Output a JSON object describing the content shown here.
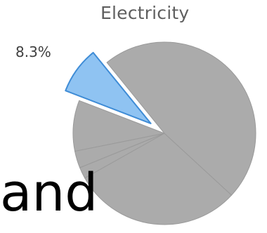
{
  "chart_data": {
    "type": "pie",
    "title": "Electricity",
    "slices": [
      {
        "label": "8.3%",
        "value": 8.3,
        "color": "#8fc3f2",
        "stroke": "#3f8cd6",
        "exploded": true
      },
      {
        "label": "",
        "value": 9.0,
        "color": "#ababab"
      },
      {
        "label": "",
        "value": 3.0,
        "color": "#ababab"
      },
      {
        "label": "",
        "value": 2.0,
        "color": "#ababab"
      },
      {
        "label": "",
        "value": 30.0,
        "color": "#ababab"
      },
      {
        "label": "",
        "value": 47.7,
        "color": "#ababab"
      }
    ],
    "slice_label": "8.3%"
  },
  "caption": {
    "text": "and"
  }
}
